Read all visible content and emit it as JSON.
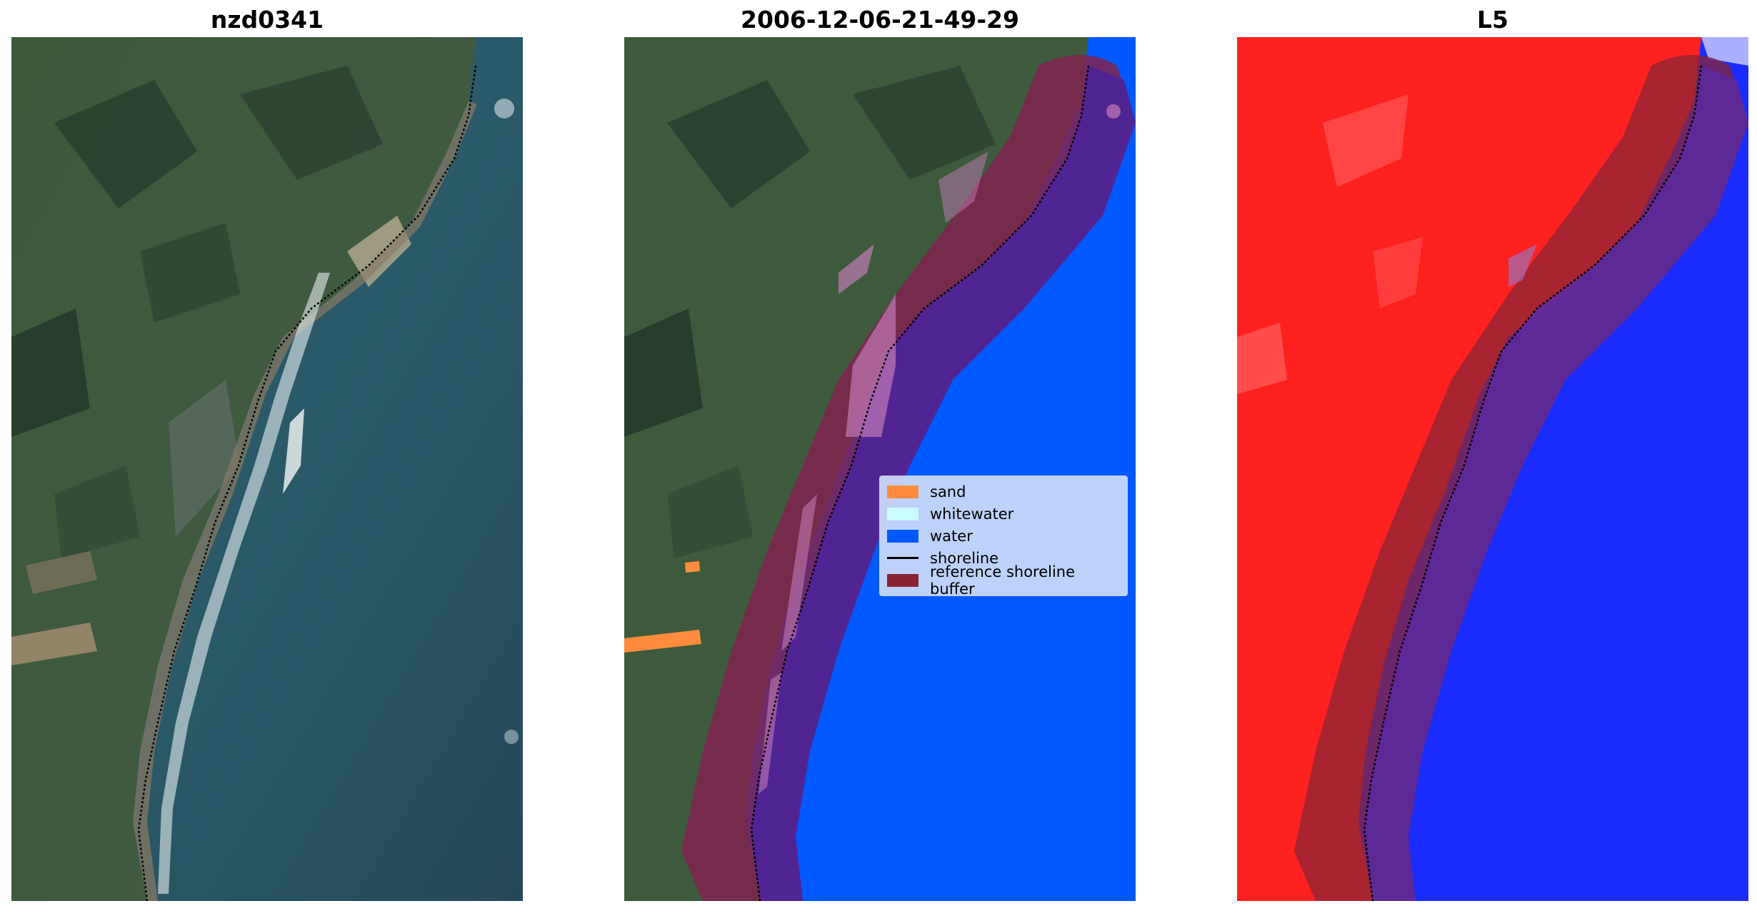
{
  "panels": {
    "rgb": {
      "title": "nzd0341"
    },
    "classified": {
      "title": "2006-12-06-21-49-29"
    },
    "index": {
      "title": "L5"
    }
  },
  "legend": {
    "items": [
      {
        "label": "sand",
        "color": "#ff8c3c",
        "kind": "patch"
      },
      {
        "label": "whitewater",
        "color": "#c9fbff",
        "kind": "patch"
      },
      {
        "label": "water",
        "color": "#0059ff",
        "kind": "patch"
      },
      {
        "label": "shoreline",
        "color": "#000000",
        "kind": "line"
      },
      {
        "label": "reference shoreline buffer",
        "color": "#8a2435",
        "kind": "patch"
      }
    ]
  },
  "colors": {
    "land": "#3d5a3c",
    "sea": "#2a5566",
    "water": "#0059ff",
    "sand": "#ff8c3c",
    "buffer": "#8a2435",
    "index_land": "#ff2020",
    "index_water": "#1a2cff"
  }
}
